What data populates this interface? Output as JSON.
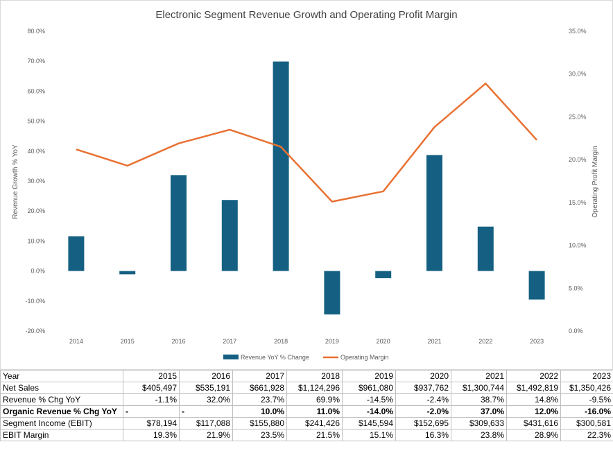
{
  "chart_data": {
    "type": "bar",
    "title": "Electronic Segment Revenue Growth and Operating Profit Margin",
    "categories": [
      "2014",
      "2015",
      "2016",
      "2017",
      "2018",
      "2019",
      "2020",
      "2021",
      "2022",
      "2023"
    ],
    "ylabel_left": "Revenue Growth % YoY",
    "ylabel_right": "Operating Profit Margin",
    "ylim_left": [
      -20,
      80
    ],
    "ylim_right": [
      0,
      35
    ],
    "left_ticks": [
      "80.0%",
      "70.0%",
      "60.0%",
      "50.0%",
      "40.0%",
      "30.0%",
      "20.0%",
      "10.0%",
      "0.0%",
      "-10.0%",
      "-20.0%"
    ],
    "right_ticks": [
      "35.0%",
      "30.0%",
      "25.0%",
      "20.0%",
      "15.0%",
      "10.0%",
      "5.0%",
      "0.0%"
    ],
    "grid": false,
    "legend_position": "bottom",
    "series": [
      {
        "name": "Revenue YoY % Change",
        "kind": "bar",
        "axis": "left",
        "color": "#156082",
        "values": [
          11.6,
          -1.1,
          32.0,
          23.7,
          69.9,
          -14.5,
          -2.4,
          38.7,
          14.8,
          -9.5
        ]
      },
      {
        "name": "Operating Margin",
        "kind": "line",
        "axis": "right",
        "color": "#e97132",
        "values": [
          21.2,
          19.3,
          21.9,
          23.5,
          21.5,
          15.1,
          16.3,
          23.8,
          28.9,
          22.3
        ]
      }
    ]
  },
  "table": {
    "header": [
      "Year",
      "2015",
      "2016",
      "2017",
      "2018",
      "2019",
      "2020",
      "2021",
      "2022",
      "2023"
    ],
    "rows": [
      {
        "bold": false,
        "cells": [
          "Net Sales",
          "$405,497",
          "$535,191",
          "$661,928",
          "$1,124,296",
          "$961,080",
          "$937,762",
          "$1,300,744",
          "$1,492,819",
          "$1,350,426"
        ]
      },
      {
        "bold": false,
        "cells": [
          "Revenue % Chg YoY",
          "-1.1%",
          "32.0%",
          "23.7%",
          "69.9%",
          "-14.5%",
          "-2.4%",
          "38.7%",
          "14.8%",
          "-9.5%"
        ]
      },
      {
        "bold": true,
        "cells": [
          "Organic Revenue % Chg YoY",
          "-",
          "-",
          "10.0%",
          "11.0%",
          "-14.0%",
          "-2.0%",
          "37.0%",
          "12.0%",
          "-16.0%"
        ]
      },
      {
        "bold": false,
        "cells": [
          "Segment Income (EBIT)",
          "$78,194",
          "$117,088",
          "$155,880",
          "$241,426",
          "$145,594",
          "$152,695",
          "$309,633",
          "$431,616",
          "$300,581"
        ]
      },
      {
        "bold": false,
        "cells": [
          "EBIT Margin",
          "19.3%",
          "21.9%",
          "23.5%",
          "21.5%",
          "15.1%",
          "16.3%",
          "23.8%",
          "28.9%",
          "22.3%"
        ]
      }
    ]
  }
}
